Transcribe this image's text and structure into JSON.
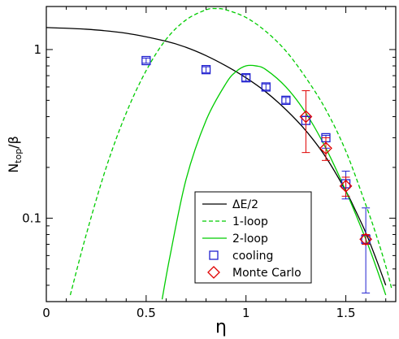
{
  "chart_data": {
    "type": "line",
    "xlabel": "η",
    "ylabel": "N_top/β",
    "xlim": [
      0,
      1.75
    ],
    "ylim": [
      0.032,
      1.8
    ],
    "yscale": "log",
    "grid": false,
    "legend_position": "bottom-right",
    "x_ticks": [
      0,
      0.5,
      1,
      1.5
    ],
    "x_tick_labels": [
      "0",
      "0.5",
      "1",
      "1.5"
    ],
    "y_ticks": [
      0.1,
      1
    ],
    "y_tick_labels": [
      "0.1",
      "1"
    ],
    "series": [
      {
        "name": "ΔE/2",
        "style": "solid",
        "color": "#000000",
        "x": [
          0,
          0.2,
          0.4,
          0.6,
          0.7,
          0.8,
          0.9,
          1.0,
          1.1,
          1.2,
          1.3,
          1.4,
          1.5,
          1.55,
          1.6,
          1.65,
          1.7
        ],
        "y": [
          1.35,
          1.32,
          1.25,
          1.12,
          1.03,
          0.92,
          0.8,
          0.68,
          0.56,
          0.44,
          0.33,
          0.23,
          0.145,
          0.11,
          0.082,
          0.058,
          0.04
        ]
      },
      {
        "name": "1-loop",
        "style": "dashed",
        "color": "#00cc00",
        "x": [
          0.12,
          0.2,
          0.3,
          0.4,
          0.5,
          0.6,
          0.7,
          0.8,
          0.85,
          0.9,
          1.0,
          1.1,
          1.2,
          1.3,
          1.4,
          1.5,
          1.6,
          1.65,
          1.7,
          1.73
        ],
        "y": [
          0.035,
          0.08,
          0.2,
          0.42,
          0.75,
          1.15,
          1.5,
          1.72,
          1.75,
          1.72,
          1.55,
          1.28,
          0.98,
          0.68,
          0.44,
          0.25,
          0.12,
          0.081,
          0.052,
          0.038
        ]
      },
      {
        "name": "2-loop",
        "style": "solid",
        "color": "#00cc00",
        "x": [
          0.58,
          0.62,
          0.7,
          0.8,
          0.9,
          0.95,
          1.0,
          1.05,
          1.1,
          1.2,
          1.3,
          1.4,
          1.5,
          1.6,
          1.65,
          1.7
        ],
        "y": [
          0.033,
          0.06,
          0.17,
          0.38,
          0.63,
          0.74,
          0.8,
          0.8,
          0.76,
          0.6,
          0.42,
          0.26,
          0.145,
          0.075,
          0.052,
          0.035
        ]
      }
    ],
    "points": [
      {
        "name": "cooling",
        "marker": "square",
        "color": "#2020d0",
        "x": [
          0.5,
          0.8,
          1.0,
          1.1,
          1.2,
          1.3,
          1.4,
          1.5,
          1.6
        ],
        "y": [
          0.86,
          0.76,
          0.68,
          0.6,
          0.5,
          0.38,
          0.3,
          0.16,
          0.075
        ],
        "err_low": [
          0.83,
          0.73,
          0.65,
          0.575,
          0.48,
          0.36,
          0.26,
          0.13,
          0.036
        ],
        "err_high": [
          0.89,
          0.79,
          0.71,
          0.625,
          0.52,
          0.4,
          0.31,
          0.19,
          0.115
        ]
      },
      {
        "name": "Monte Carlo",
        "marker": "diamond",
        "color": "#e00000",
        "x": [
          1.3,
          1.4,
          1.5,
          1.6
        ],
        "y": [
          0.4,
          0.26,
          0.155,
          0.075
        ],
        "err_low": [
          0.245,
          0.22,
          0.135,
          0.07
        ],
        "err_high": [
          0.57,
          0.3,
          0.175,
          0.08
        ]
      }
    ]
  }
}
